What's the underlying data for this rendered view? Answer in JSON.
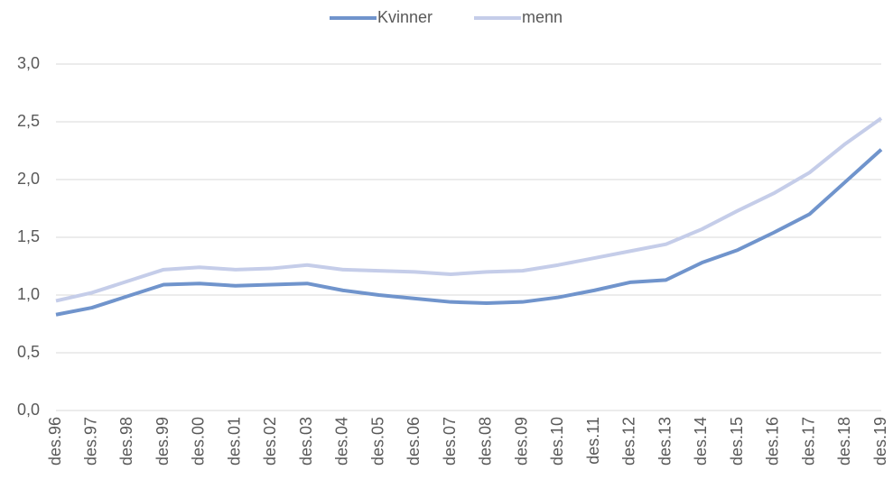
{
  "chart_data": {
    "type": "line",
    "categories": [
      "des.96",
      "des.97",
      "des.98",
      "des.99",
      "des.00",
      "des.01",
      "des.02",
      "des.03",
      "des.04",
      "des.05",
      "des.06",
      "des.07",
      "des.08",
      "des.09",
      "des.10",
      "des.11",
      "des.12",
      "des.13",
      "des.14",
      "des.15",
      "des.16",
      "des.17",
      "des.18",
      "des.19"
    ],
    "series": [
      {
        "name": "Kvinner",
        "color": "#7094cc",
        "values": [
          0.83,
          0.89,
          0.99,
          1.09,
          1.1,
          1.08,
          1.09,
          1.1,
          1.04,
          1.0,
          0.97,
          0.94,
          0.93,
          0.94,
          0.98,
          1.04,
          1.11,
          1.13,
          1.28,
          1.39,
          1.54,
          1.7,
          1.98,
          2.26
        ]
      },
      {
        "name": "menn",
        "color": "#c5cde9",
        "values": [
          0.95,
          1.02,
          1.12,
          1.22,
          1.24,
          1.22,
          1.23,
          1.26,
          1.22,
          1.21,
          1.2,
          1.18,
          1.2,
          1.21,
          1.26,
          1.32,
          1.38,
          1.44,
          1.57,
          1.73,
          1.88,
          2.06,
          2.31,
          2.53
        ]
      }
    ],
    "ylim": [
      0,
      3
    ],
    "yticks": [
      {
        "value": 0,
        "label": "0,0"
      },
      {
        "value": 0.5,
        "label": "0,5"
      },
      {
        "value": 1,
        "label": "1,0"
      },
      {
        "value": 1.5,
        "label": "1,5"
      },
      {
        "value": 2,
        "label": "2,0"
      },
      {
        "value": 2.5,
        "label": "2,5"
      },
      {
        "value": 3,
        "label": "3,0"
      }
    ],
    "grid": true,
    "legend": "top"
  }
}
